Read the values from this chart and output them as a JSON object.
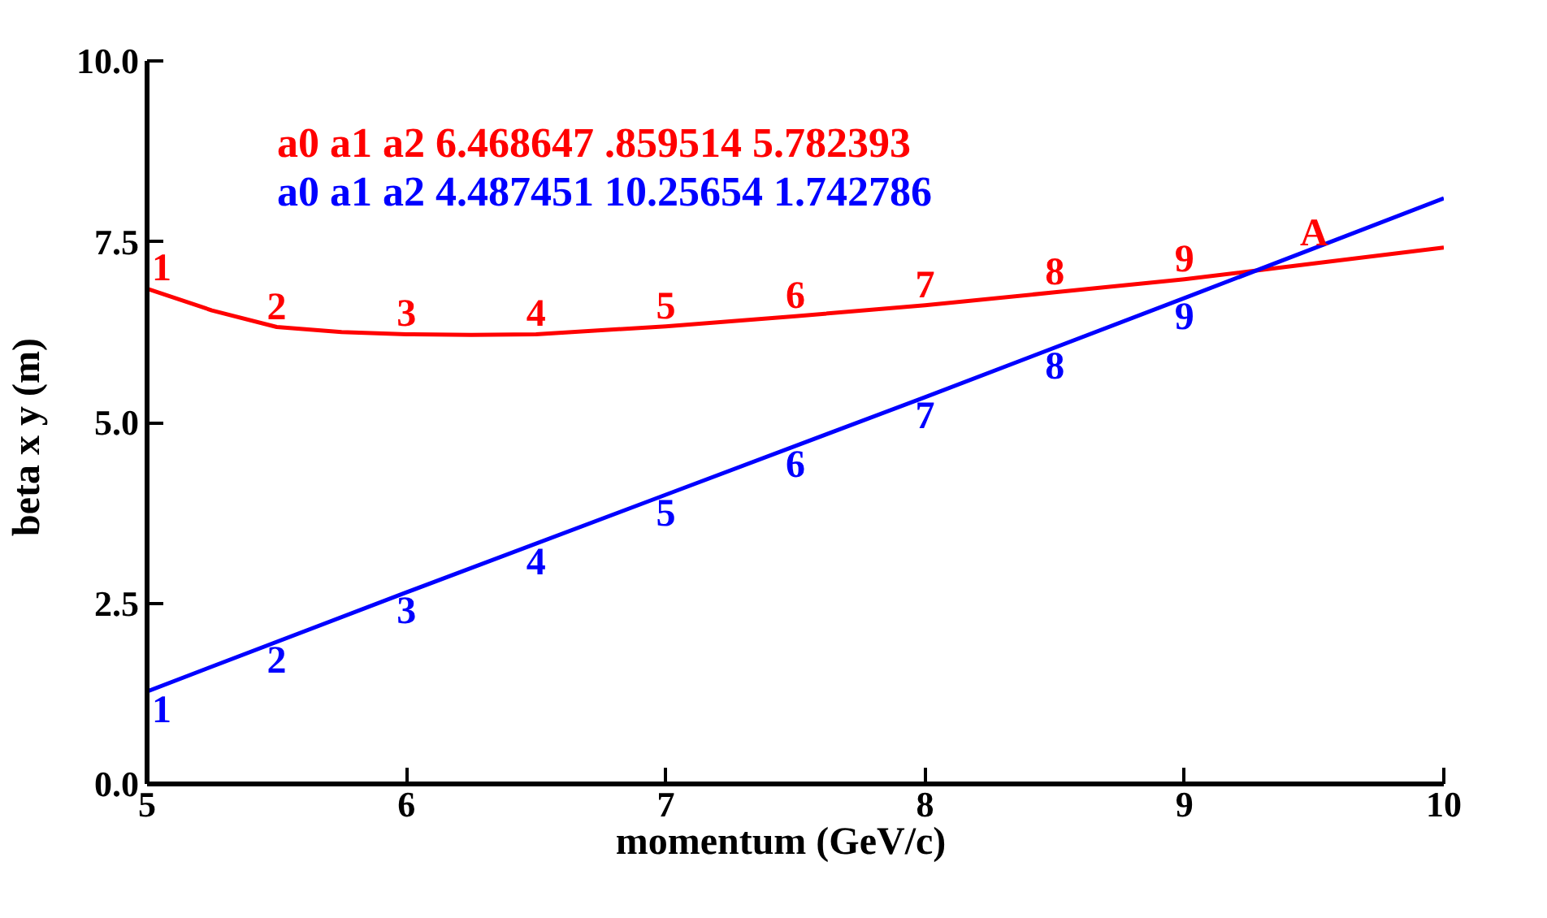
{
  "chart_data": {
    "type": "line",
    "xlabel": "momentum    (GeV/c)",
    "ylabel": "beta  x  y  (m)",
    "annotations": [
      "a0 a1 a2   6.468647   .859514   5.782393",
      "a0 a1 a2   4.487451   10.25654   1.742786",
      {
        "text": "1",
        "x": 5,
        "y": 6.85
      },
      {
        "text": "2",
        "x": 5.5,
        "y": 6.32
      },
      {
        "text": "3",
        "x": 6,
        "y": 6.22
      },
      {
        "text": "4",
        "x": 6.5,
        "y": 6.22
      },
      {
        "text": "5",
        "x": 7,
        "y": 6.33
      },
      {
        "text": "6",
        "x": 7.5,
        "y": 6.47
      },
      {
        "text": "7",
        "x": 8,
        "y": 6.62
      },
      {
        "text": "8",
        "x": 8.5,
        "y": 6.8
      },
      {
        "text": "9",
        "x": 9,
        "y": 6.98
      },
      {
        "text": "A",
        "x": 9.5,
        "y": 7.2
      },
      {
        "text": "1",
        "x": 5,
        "y": 1.28
      },
      {
        "text": "2",
        "x": 5.5,
        "y": 1.97
      },
      {
        "text": "3",
        "x": 6,
        "y": 2.65
      },
      {
        "text": "4",
        "x": 6.5,
        "y": 3.33
      },
      {
        "text": "5",
        "x": 7,
        "y": 4.0
      },
      {
        "text": "6",
        "x": 7.5,
        "y": 4.67
      },
      {
        "text": "7",
        "x": 8,
        "y": 5.35
      },
      {
        "text": "8",
        "x": 8.5,
        "y": 6.03
      },
      {
        "text": "9",
        "x": 9,
        "y": 6.72
      }
    ],
    "series": [
      {
        "color": "#ff0000",
        "x": [
          5,
          5.25,
          5.5,
          5.75,
          6,
          6.25,
          6.5,
          7,
          7.5,
          8,
          8.5,
          9,
          9.5,
          10
        ],
        "values": [
          6.85,
          6.55,
          6.32,
          6.25,
          6.22,
          6.21,
          6.22,
          6.33,
          6.47,
          6.62,
          6.8,
          6.98,
          7.2,
          7.42
        ]
      },
      {
        "color": "#0000ff",
        "x": [
          5,
          6,
          7,
          8,
          9,
          10
        ],
        "values": [
          1.28,
          2.65,
          4.0,
          5.35,
          6.72,
          8.1
        ]
      }
    ],
    "grid": false,
    "xlim": [
      5,
      10
    ],
    "xticks": [
      5,
      6,
      7,
      8,
      9,
      10
    ],
    "ylim": [
      0,
      10
    ],
    "yticks": [
      {
        "value": 0,
        "label": "0.0"
      },
      {
        "value": 2.5,
        "label": "2.5"
      },
      {
        "value": 5,
        "label": "5.0"
      },
      {
        "value": 7.5,
        "label": "7.5"
      },
      {
        "value": 10,
        "label": "10.0"
      }
    ]
  }
}
